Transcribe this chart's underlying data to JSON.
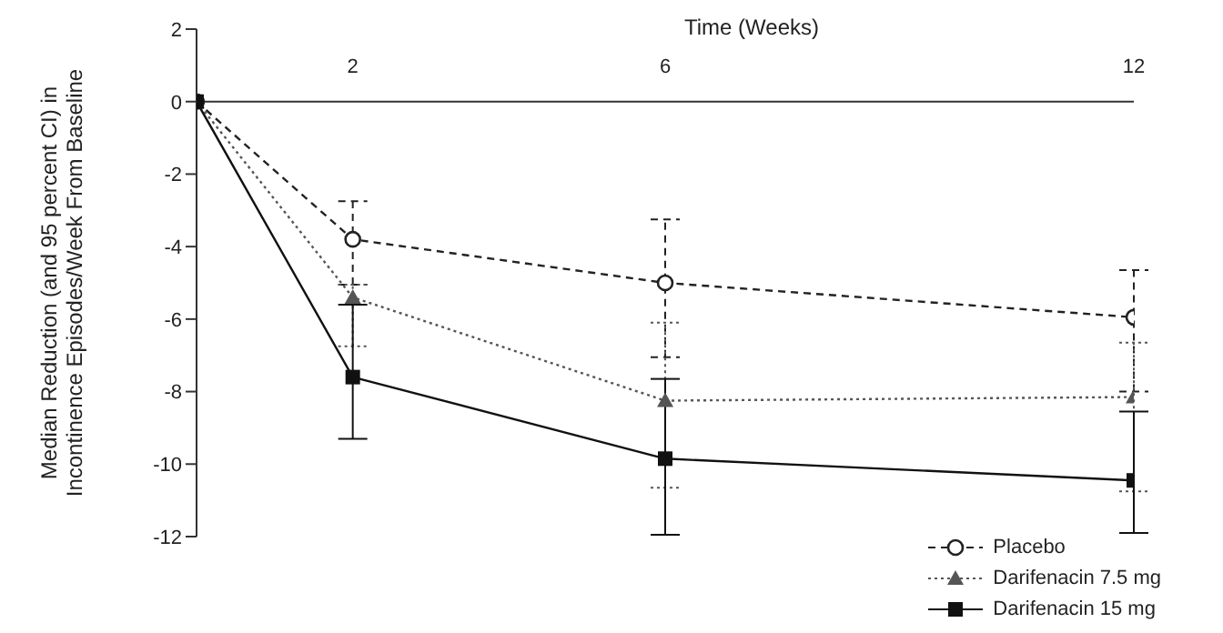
{
  "chart_data": {
    "type": "line",
    "xlabel": "Time (Weeks)",
    "ylabel": "Median Reduction (and 95 percent CI) in Incontinence Episodes/Week From Baseline",
    "x": [
      0,
      2,
      6,
      12
    ],
    "series": [
      {
        "name": "Placebo",
        "color": "#222222",
        "values": [
          0,
          -3.8,
          -5.0,
          -5.95
        ],
        "errors": [
          null,
          [
            -5.05,
            -2.75
          ],
          [
            -7.05,
            -3.25
          ],
          [
            -8.0,
            -4.65
          ]
        ],
        "marker": "circle",
        "line_style": "dashed"
      },
      {
        "name": "Darifenacin 7.5 mg",
        "color": "#555555",
        "values": [
          0,
          -5.4,
          -8.25,
          -8.15
        ],
        "errors": [
          null,
          [
            -6.75,
            -5.05
          ],
          [
            -10.65,
            -6.1
          ],
          [
            -10.75,
            -6.65
          ]
        ],
        "marker": "triangle",
        "line_style": "dotted"
      },
      {
        "name": "Darifenacin 15 mg",
        "color": "#111111",
        "values": [
          0,
          -7.6,
          -9.85,
          -10.45
        ],
        "errors": [
          null,
          [
            -9.3,
            -5.6
          ],
          [
            -11.95,
            -7.65
          ],
          [
            -11.9,
            -8.55
          ]
        ],
        "marker": "square",
        "line_style": "solid"
      }
    ],
    "xlim": [
      0,
      12
    ],
    "xticks": [
      2,
      6,
      12
    ],
    "ylim": [
      -12,
      2
    ],
    "yticks": [
      -12,
      -10,
      -8,
      -6,
      -4,
      -2,
      0,
      2
    ],
    "grid": false,
    "legend": "bottom right"
  }
}
